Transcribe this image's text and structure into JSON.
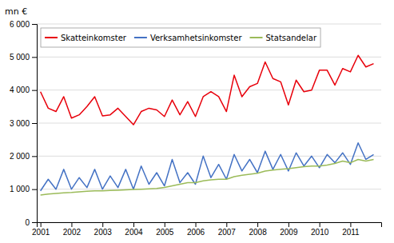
{
  "chart_data": {
    "type": "line",
    "ylabel": "mn €",
    "x": [
      2001,
      2001.25,
      2001.5,
      2001.75,
      2002,
      2002.25,
      2002.5,
      2002.75,
      2003,
      2003.25,
      2003.5,
      2003.75,
      2004,
      2004.25,
      2004.5,
      2004.75,
      2005,
      2005.25,
      2005.5,
      2005.75,
      2006,
      2006.25,
      2006.5,
      2006.75,
      2007,
      2007.25,
      2007.5,
      2007.75,
      2008,
      2008.25,
      2008.5,
      2008.75,
      2009,
      2009.25,
      2009.5,
      2009.75,
      2010,
      2010.25,
      2010.5,
      2010.75,
      2011,
      2011.25,
      2011.5,
      2011.75
    ],
    "xlim": [
      2000.88,
      2011.995
    ],
    "xticks": [
      2001,
      2002,
      2003,
      2004,
      2005,
      2006,
      2007,
      2008,
      2009,
      2010,
      2011
    ],
    "ylim": [
      0,
      6000
    ],
    "yticks": [
      0,
      {
        "value": 1000,
        "label": "1 000"
      },
      {
        "value": 2000,
        "label": "2 000"
      },
      {
        "value": 3000,
        "label": "3 000"
      },
      {
        "value": 4000,
        "label": "4 000"
      },
      {
        "value": 5000,
        "label": "5 000"
      },
      {
        "value": 6000,
        "label": "6 000"
      }
    ],
    "grid": true,
    "legend": "upper left",
    "series": [
      {
        "name": "Skatteinkomster",
        "color": "#e8000b",
        "values": [
          3950,
          3450,
          3350,
          3800,
          3150,
          3250,
          3500,
          3800,
          3220,
          3250,
          3450,
          3200,
          2950,
          3350,
          3450,
          3400,
          3200,
          3700,
          3250,
          3650,
          3200,
          3800,
          3950,
          3800,
          3350,
          4450,
          3800,
          4100,
          4200,
          4850,
          4350,
          4250,
          3550,
          4300,
          3950,
          4000,
          4600,
          4600,
          4150,
          4650,
          4550,
          5050,
          4700,
          4800
        ]
      },
      {
        "name": "Verksamhetsinkomster",
        "color": "#4472c4",
        "values": [
          950,
          1300,
          1000,
          1600,
          1000,
          1350,
          1050,
          1600,
          1000,
          1400,
          1050,
          1600,
          1000,
          1700,
          1150,
          1500,
          1100,
          1900,
          1200,
          1500,
          1150,
          2000,
          1350,
          1750,
          1300,
          2050,
          1550,
          1900,
          1500,
          2150,
          1600,
          2050,
          1550,
          2100,
          1700,
          2000,
          1650,
          2050,
          1800,
          2100,
          1750,
          2400,
          1900,
          2050
        ]
      },
      {
        "name": "Statsandelar",
        "color": "#9bbb59",
        "values": [
          820,
          850,
          870,
          890,
          900,
          920,
          940,
          950,
          950,
          960,
          970,
          980,
          990,
          1000,
          1010,
          1020,
          1050,
          1100,
          1150,
          1200,
          1200,
          1250,
          1280,
          1300,
          1300,
          1380,
          1420,
          1450,
          1480,
          1550,
          1580,
          1600,
          1620,
          1650,
          1680,
          1700,
          1700,
          1730,
          1780,
          1850,
          1800,
          1900,
          1850,
          1900
        ]
      }
    ]
  }
}
